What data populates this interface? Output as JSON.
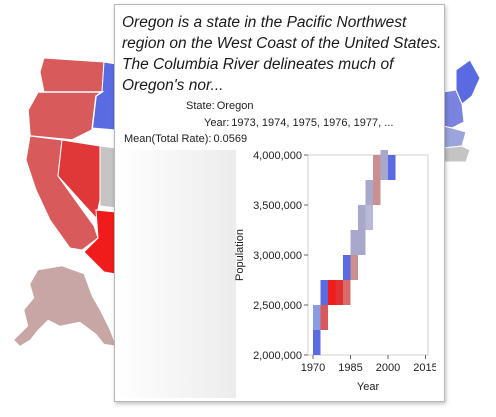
{
  "map": {
    "fill_colors": {
      "strong_red": "#f01c1c",
      "mid_red": "#d85a5a",
      "pale_red": "#c8a6a6",
      "pale_blue": "#a8a8cc",
      "strong_blue": "#5a6ae0",
      "neutral": "#c4c4c4"
    }
  },
  "tooltip": {
    "description": "Oregon is a state in the Pacific Northwest region on the West Coast of the United States. The Columbia River delineates much of Oregon's nor...",
    "fields": [
      {
        "key": "State:",
        "value": "Oregon"
      },
      {
        "key": "Year:",
        "value": "1973, 1974, 1975, 1976, 1977, ..."
      },
      {
        "key": "Mean(Total Rate):",
        "value": "0.0569"
      }
    ]
  },
  "chart_data": {
    "type": "heatmap",
    "xlabel": "Year",
    "ylabel": "Population",
    "xlim": [
      1968,
      2016
    ],
    "ylim": [
      2000000,
      4000000
    ],
    "xticks": [
      "1970",
      "1985",
      "2000",
      "2015"
    ],
    "xtick_values": [
      1970,
      1985,
      2000,
      2015
    ],
    "yticks": [
      "2,000,000",
      "2,500,000",
      "3,000,000",
      "3,500,000",
      "4,000,000"
    ],
    "ytick_values": [
      2000000,
      2500000,
      3000000,
      3500000,
      4000000
    ],
    "cell_width_years": 3,
    "cell_height": 250000,
    "cells": [
      {
        "year": 1970,
        "population": 2000000,
        "color": "#5a6ae0"
      },
      {
        "year": 1970,
        "population": 2250000,
        "color": "#8a9ce0"
      },
      {
        "year": 1973,
        "population": 2250000,
        "color": "#d85a5a"
      },
      {
        "year": 1973,
        "population": 2500000,
        "color": "#5a6ae0"
      },
      {
        "year": 1976,
        "population": 2500000,
        "color": "#f01c1c"
      },
      {
        "year": 1979,
        "population": 2500000,
        "color": "#e03030"
      },
      {
        "year": 1982,
        "population": 2750000,
        "color": "#5a6ae0"
      },
      {
        "year": 1982,
        "population": 2500000,
        "color": "#d86a6a"
      },
      {
        "year": 1985,
        "population": 2750000,
        "color": "#cc8f8f"
      },
      {
        "year": 1985,
        "population": 3000000,
        "color": "#a8a8cc"
      },
      {
        "year": 1988,
        "population": 3000000,
        "color": "#a8a8cc"
      },
      {
        "year": 1988,
        "population": 3250000,
        "color": "#a8a8cc"
      },
      {
        "year": 1991,
        "population": 3250000,
        "color": "#b8b8d8"
      },
      {
        "year": 1991,
        "population": 3500000,
        "color": "#a8a8cc"
      },
      {
        "year": 1994,
        "population": 3500000,
        "color": "#cc8f8f"
      },
      {
        "year": 1994,
        "population": 3750000,
        "color": "#cc8f8f"
      },
      {
        "year": 1997,
        "population": 3750000,
        "color": "#a8a8cc"
      },
      {
        "year": 1997,
        "population": 4000000,
        "color": "#a8a8cc"
      },
      {
        "year": 2000,
        "population": 3750000,
        "color": "#5a6ae0"
      }
    ]
  }
}
